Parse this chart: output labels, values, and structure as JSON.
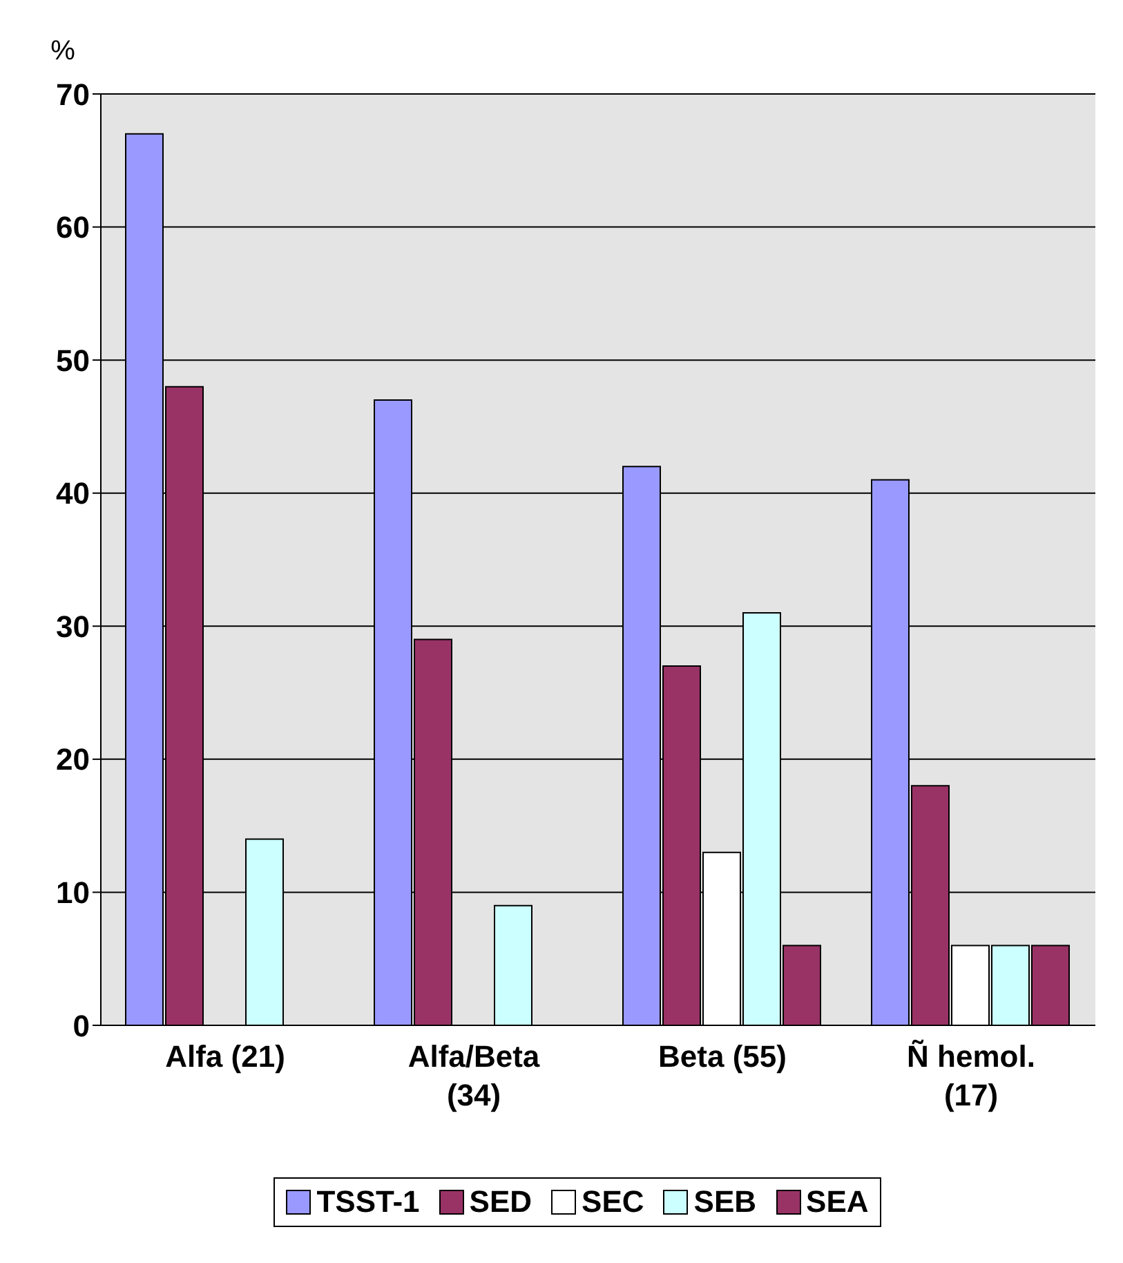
{
  "chart_data": {
    "type": "bar",
    "ylabel": "%",
    "categories": [
      "Alfa (21)",
      "Alfa/Beta (34)",
      "Beta (55)",
      "Ñ hemol. (17)"
    ],
    "series": [
      {
        "name": "TSST-1",
        "color": "#9999ff",
        "values": [
          67,
          47,
          42,
          41
        ]
      },
      {
        "name": "SED",
        "color": "#993366",
        "values": [
          48,
          29,
          27,
          18
        ]
      },
      {
        "name": "SEC",
        "color": "#ffffff",
        "values": [
          0,
          0,
          13,
          6
        ]
      },
      {
        "name": "SEB",
        "color": "#ccffff",
        "values": [
          14,
          9,
          31,
          6
        ]
      },
      {
        "name": "SEA",
        "color": "#993366",
        "values": [
          0,
          0,
          6,
          6
        ]
      }
    ],
    "ylim": [
      0,
      70
    ],
    "yticks": [
      0,
      10,
      20,
      30,
      40,
      50,
      60,
      70
    ],
    "grid": "y",
    "legend": "bottom"
  }
}
